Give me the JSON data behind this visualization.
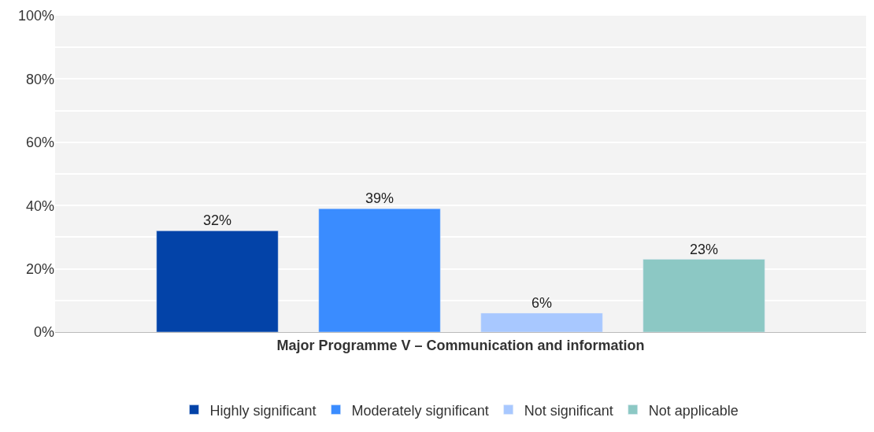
{
  "chart_data": {
    "type": "bar",
    "categories": [
      "Major Programme V – Communication and information"
    ],
    "series": [
      {
        "name": "Highly significant",
        "color": "#0343a8",
        "values": [
          32
        ],
        "value_labels": [
          "32%"
        ]
      },
      {
        "name": "Moderately significant",
        "color": "#3a8cff",
        "values": [
          39
        ],
        "value_labels": [
          "39%"
        ]
      },
      {
        "name": "Not significant",
        "color": "#a8c8ff",
        "values": [
          6
        ],
        "value_labels": [
          "6%"
        ]
      },
      {
        "name": "Not applicable",
        "color": "#8cc8c4",
        "values": [
          23
        ],
        "value_labels": [
          "23%"
        ]
      }
    ],
    "ylim": [
      0,
      100
    ],
    "yticks": [
      {
        "value": 0,
        "label": "0%"
      },
      {
        "value": 10,
        "label": null
      },
      {
        "value": 20,
        "label": "20%"
      },
      {
        "value": 30,
        "label": null
      },
      {
        "value": 40,
        "label": "40%"
      },
      {
        "value": 50,
        "label": null
      },
      {
        "value": 60,
        "label": "60%"
      },
      {
        "value": 70,
        "label": null
      },
      {
        "value": 80,
        "label": "80%"
      },
      {
        "value": 90,
        "label": null
      },
      {
        "value": 100,
        "label": "100%"
      }
    ],
    "grid": "y",
    "legend": "bottom"
  }
}
